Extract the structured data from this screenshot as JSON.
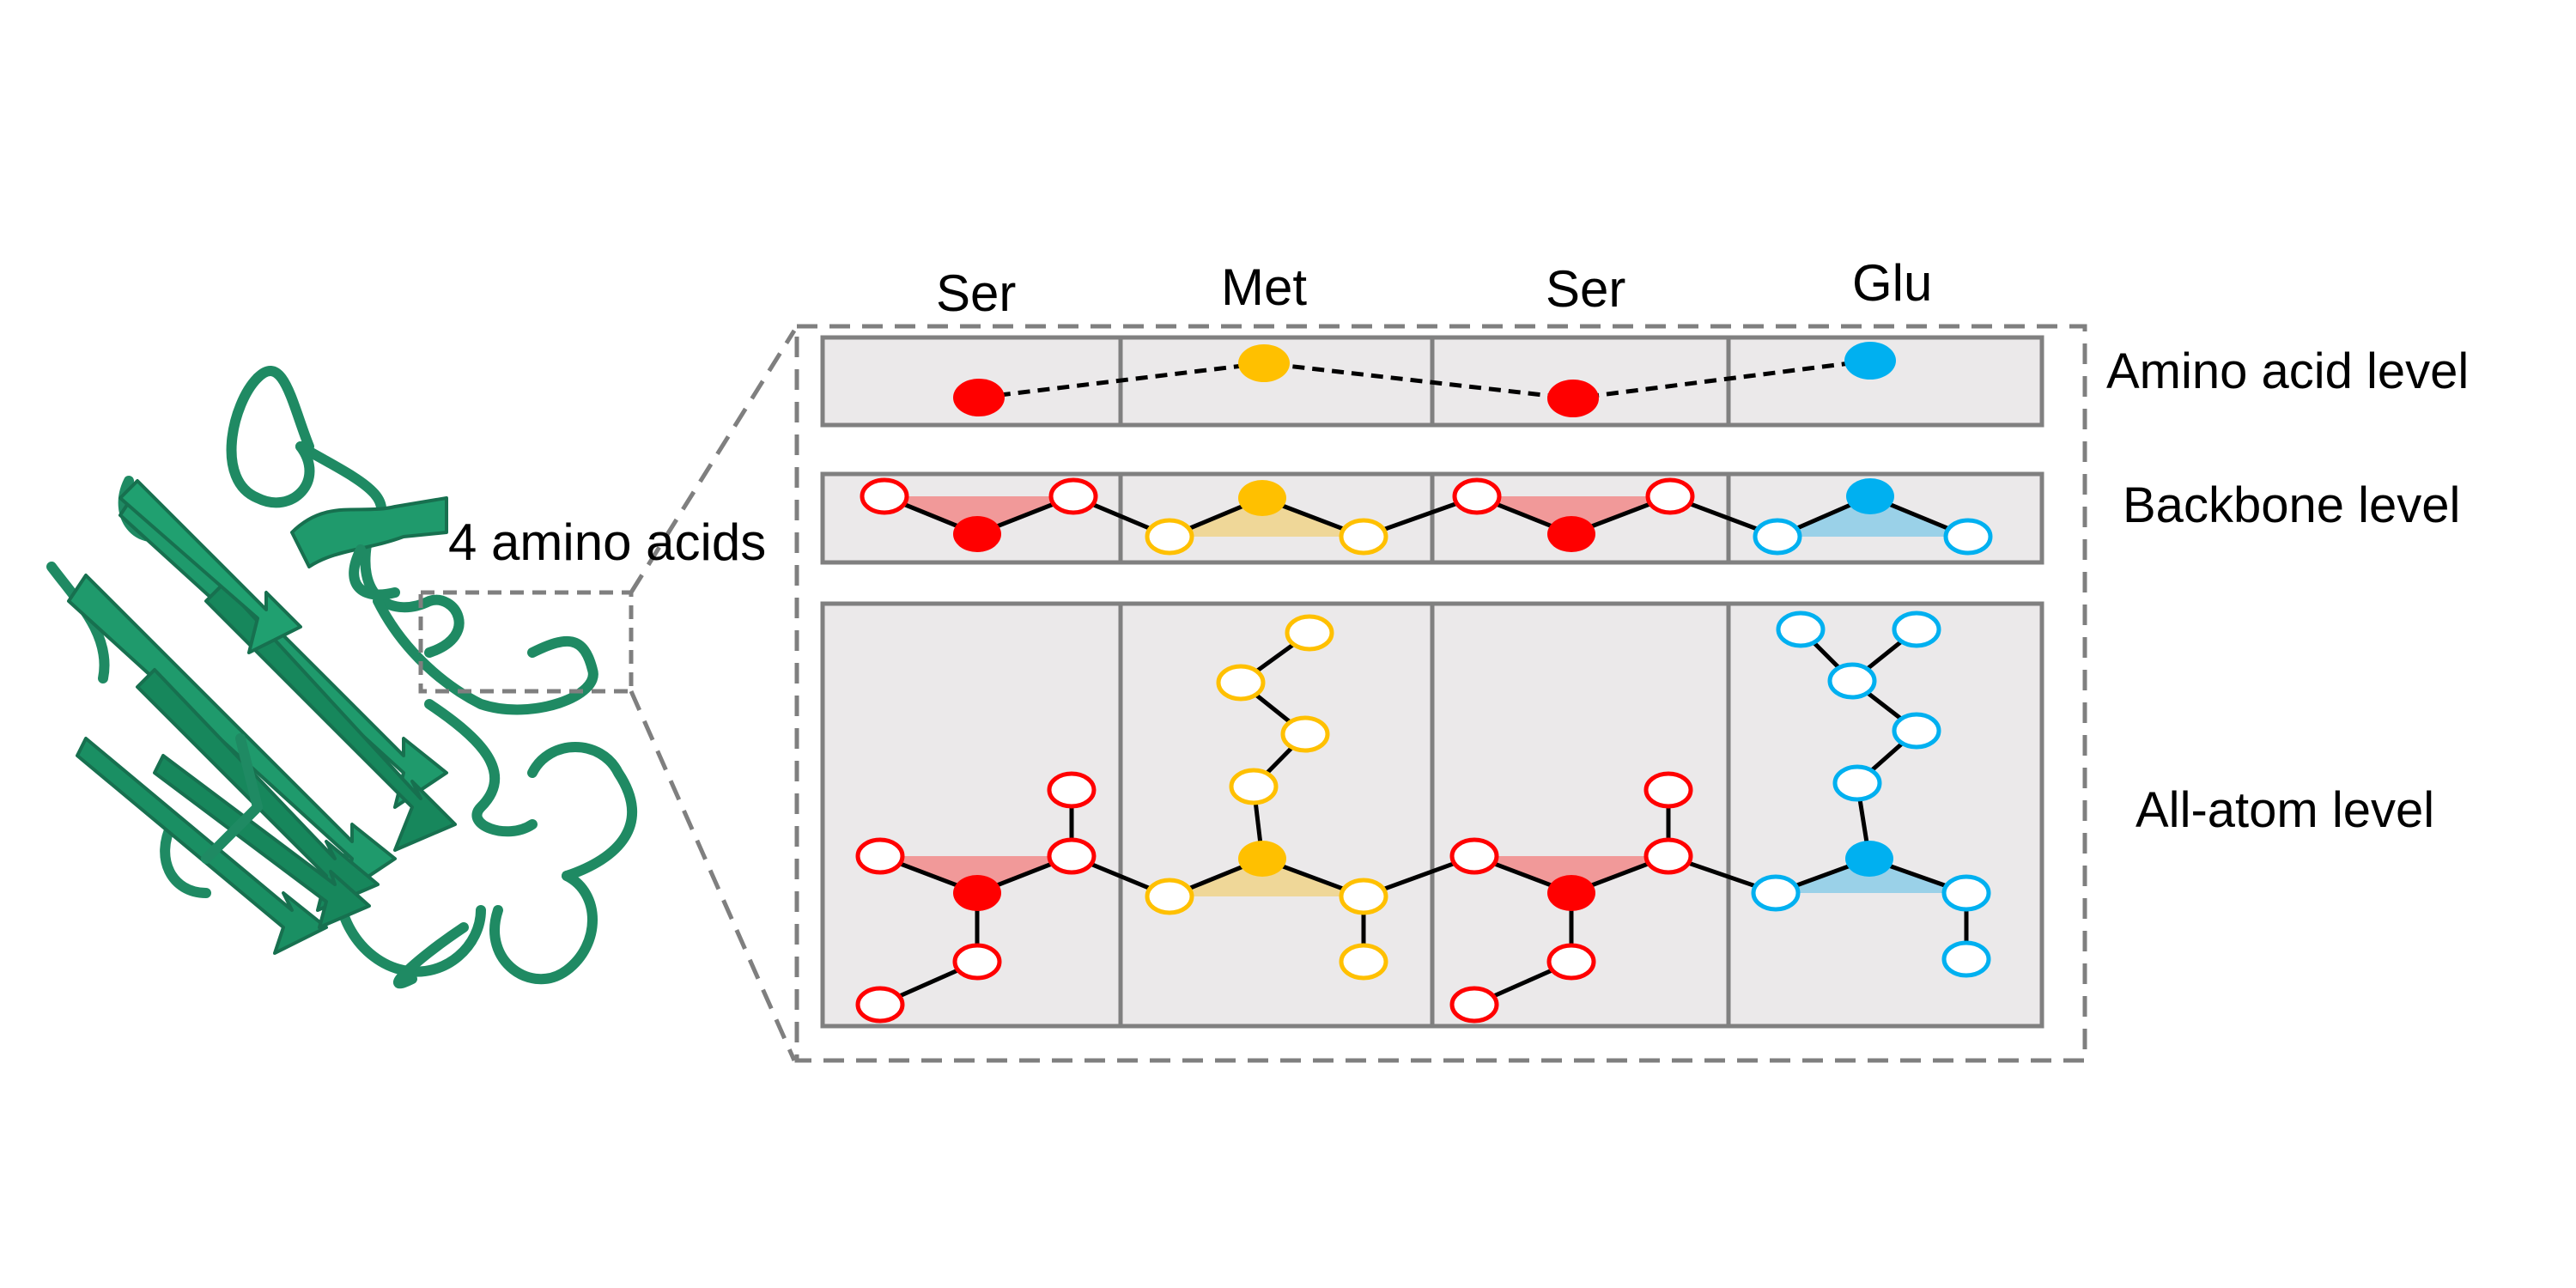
{
  "callout_label": "4 amino acids",
  "columns": [
    "Ser",
    "Met",
    "Ser",
    "Glu"
  ],
  "levels": {
    "amino_acid": "Amino acid level",
    "backbone": "Backbone level",
    "all_atom": "All-atom level"
  },
  "colors": {
    "protein_ribbon": "#1f8a63",
    "panel_fill": "#ebe9ea",
    "panel_border": "#808080",
    "dashed_frame": "#7f7f7f",
    "Ser": "#ff0000",
    "Met": "#ffc000",
    "Glu": "#00b0f0",
    "Ser_tint": "#f28b8b",
    "Met_tint": "#f0d48a",
    "Glu_tint": "#8ccce8"
  }
}
